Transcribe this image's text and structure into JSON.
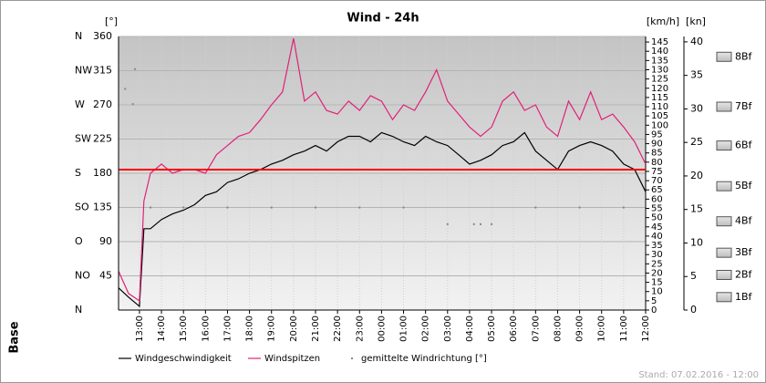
{
  "chart_data": {
    "type": "line",
    "title": "Wind - 24h",
    "y_label": "[°]",
    "y2_label": "[km/h]",
    "y3_label": "[kn]",
    "logo": "Base",
    "footer": "Stand: 07.02.2016 - 12:00",
    "grid": true,
    "xlim": [
      -0.95,
      23
    ],
    "xticks": [
      {
        "value": 0,
        "label": "13:00"
      },
      {
        "value": 1,
        "label": "14:00"
      },
      {
        "value": 2,
        "label": "15:00"
      },
      {
        "value": 3,
        "label": "16:00"
      },
      {
        "value": 4,
        "label": "17:00"
      },
      {
        "value": 5,
        "label": "18:00"
      },
      {
        "value": 6,
        "label": "19:00"
      },
      {
        "value": 7,
        "label": "20:00"
      },
      {
        "value": 8,
        "label": "21:00"
      },
      {
        "value": 9,
        "label": "22:00"
      },
      {
        "value": 10,
        "label": "23:00"
      },
      {
        "value": 11,
        "label": "00:00"
      },
      {
        "value": 12,
        "label": "01:00"
      },
      {
        "value": 13,
        "label": "02:00"
      },
      {
        "value": 14,
        "label": "03:00"
      },
      {
        "value": 15,
        "label": "04:00"
      },
      {
        "value": 16,
        "label": "05:00"
      },
      {
        "value": 17,
        "label": "06:00"
      },
      {
        "value": 18,
        "label": "07:00"
      },
      {
        "value": 19,
        "label": "08:00"
      },
      {
        "value": 20,
        "label": "09:00"
      },
      {
        "value": 21,
        "label": "10:00"
      },
      {
        "value": 22,
        "label": "11:00"
      },
      {
        "value": 23,
        "label": "12:00"
      }
    ],
    "ylim": [
      0,
      360
    ],
    "yticks": [
      45,
      90,
      135,
      180,
      225,
      270,
      315,
      360
    ],
    "compass_ticks": [
      {
        "value": 0,
        "label": "N"
      },
      {
        "value": 45,
        "label": "NO"
      },
      {
        "value": 90,
        "label": "O"
      },
      {
        "value": 135,
        "label": "SO"
      },
      {
        "value": 180,
        "label": "S"
      },
      {
        "value": 225,
        "label": "SW"
      },
      {
        "value": 270,
        "label": "W"
      },
      {
        "value": 315,
        "label": "NW"
      },
      {
        "value": 360,
        "label": "N"
      }
    ],
    "y2lim": [
      0,
      148
    ],
    "y2ticks": [
      0,
      5,
      10,
      15,
      20,
      25,
      30,
      35,
      40,
      45,
      50,
      55,
      60,
      65,
      70,
      75,
      80,
      85,
      90,
      95,
      100,
      105,
      110,
      115,
      120,
      125,
      130,
      135,
      140,
      145
    ],
    "y3lim": [
      0,
      40.8
    ],
    "y3ticks": [
      0,
      5,
      10,
      15,
      20,
      25,
      30,
      35,
      40
    ],
    "reference_line": {
      "value": 76,
      "axis": "y2",
      "color": "#ff0000"
    },
    "beaufort": [
      {
        "label": "1Bf",
        "value": 7
      },
      {
        "label": "2Bf",
        "value": 19
      },
      {
        "label": "3Bf",
        "value": 31
      },
      {
        "label": "4Bf",
        "value": 48
      },
      {
        "label": "5Bf",
        "value": 67
      },
      {
        "label": "6Bf",
        "value": 89
      },
      {
        "label": "7Bf",
        "value": 110
      },
      {
        "label": "8Bf",
        "value": 137
      }
    ],
    "series": [
      {
        "name": "Windgeschwindigkeit",
        "color": "#000000",
        "axis": "y2",
        "mode": "line",
        "x": [
          -0.95,
          -0.5,
          0,
          0.2,
          0.5,
          1,
          1.5,
          2,
          2.5,
          3,
          3.5,
          4,
          4.5,
          5,
          5.5,
          6,
          6.5,
          7,
          7.5,
          8,
          8.5,
          9,
          9.5,
          10,
          10.5,
          11,
          11.5,
          12,
          12.5,
          13,
          13.5,
          14,
          14.5,
          15,
          15.5,
          16,
          16.5,
          17,
          17.5,
          18,
          18.5,
          19,
          19.5,
          20,
          20.5,
          21,
          21.5,
          22,
          22.5,
          23
        ],
        "values": [
          12,
          7,
          2,
          44,
          44,
          49,
          52,
          54,
          57,
          62,
          64,
          69,
          71,
          74,
          76,
          79,
          81,
          84,
          86,
          89,
          86,
          91,
          94,
          94,
          91,
          96,
          94,
          91,
          89,
          94,
          91,
          89,
          84,
          79,
          81,
          84,
          89,
          91,
          96,
          86,
          81,
          76,
          86,
          89,
          91,
          89,
          86,
          79,
          76,
          64
        ]
      },
      {
        "name": "Windspitzen",
        "color": "#e0217a",
        "axis": "y2",
        "mode": "line",
        "x": [
          -0.95,
          -0.5,
          0,
          0.2,
          0.5,
          1,
          1.5,
          2,
          2.5,
          3,
          3.5,
          4,
          4.5,
          5,
          5.5,
          6,
          6.5,
          7,
          7.5,
          8,
          8.5,
          9,
          9.5,
          10,
          10.5,
          11,
          11.5,
          12,
          12.5,
          13,
          13.5,
          14,
          14.5,
          15,
          15.5,
          16,
          16.5,
          17,
          17.5,
          18,
          18.5,
          19,
          19.5,
          20,
          20.5,
          21,
          21.5,
          22,
          22.5,
          23
        ],
        "values": [
          21,
          9,
          5,
          59,
          74,
          79,
          74,
          76,
          76,
          74,
          84,
          89,
          94,
          96,
          103,
          111,
          118,
          147,
          113,
          118,
          108,
          106,
          113,
          108,
          116,
          113,
          103,
          111,
          108,
          118,
          130,
          113,
          106,
          99,
          94,
          99,
          113,
          118,
          108,
          111,
          99,
          94,
          113,
          103,
          118,
          103,
          106,
          99,
          91,
          79
        ]
      },
      {
        "name": "gemittelte Windrichtung [°]",
        "color": "#888888",
        "axis": "y",
        "mode": "markers",
        "x": [
          -0.65,
          -0.3,
          -0.2,
          0.5,
          2,
          4,
          6,
          8,
          10,
          12,
          14,
          15.2,
          15.5,
          16,
          18,
          20,
          22
        ],
        "values": [
          291,
          271,
          317,
          135,
          135,
          135,
          135,
          135,
          135,
          135,
          113,
          113,
          113,
          113,
          135,
          135,
          135
        ]
      }
    ]
  }
}
